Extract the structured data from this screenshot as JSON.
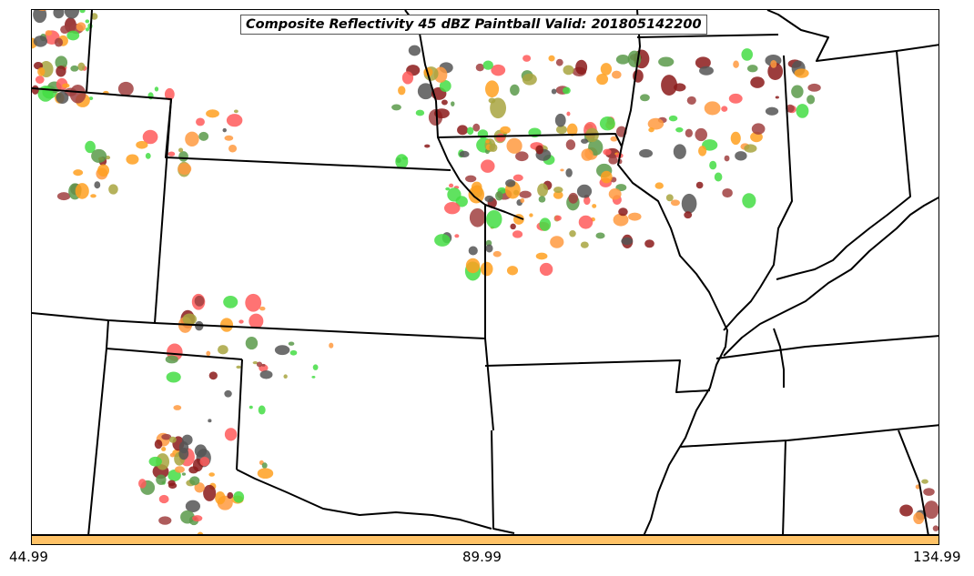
{
  "title": "Composite Reflectivity 45 dBZ Paintball Valid: 201805142200",
  "colorbar": {
    "color": "#ffc266",
    "tick_labels": [
      "44.99",
      "89.99",
      "134.99"
    ]
  },
  "paintball_colors": [
    "#ff5a5a",
    "#ff9a40",
    "#ffa020",
    "#44dd44",
    "#5a9a4a",
    "#a04040",
    "#8b1a1a",
    "#555555",
    "#a8a440"
  ]
}
